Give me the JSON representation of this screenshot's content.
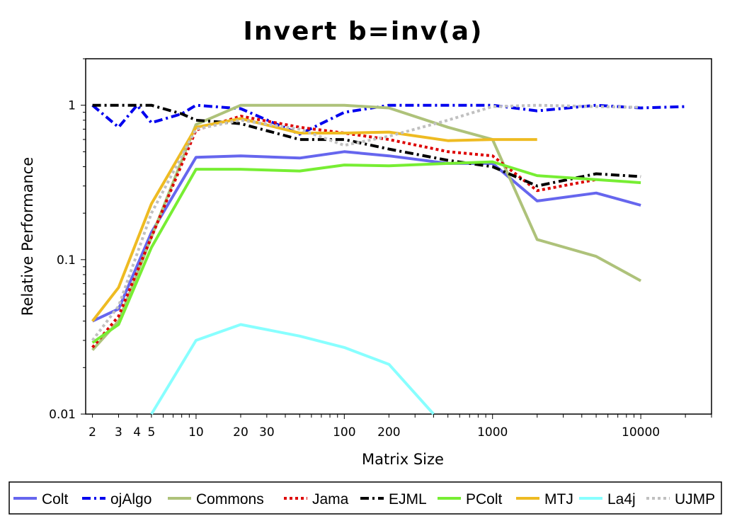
{
  "chart_data": {
    "type": "line",
    "title": "Invert b=inv(a)",
    "xlabel": "Matrix Size",
    "ylabel": "Relative Performance",
    "xscale": "log",
    "yscale": "log",
    "xlim": [
      1.8,
      30000
    ],
    "ylim": [
      0.01,
      2.0
    ],
    "x_ticks": [
      {
        "value": 2,
        "label": "2"
      },
      {
        "value": 3,
        "label": "3"
      },
      {
        "value": 4,
        "label": "4"
      },
      {
        "value": 5,
        "label": "5"
      },
      {
        "value": 10,
        "label": "10"
      },
      {
        "value": 20,
        "label": "20"
      },
      {
        "value": 30,
        "label": "30"
      },
      {
        "value": 100,
        "label": "100"
      },
      {
        "value": 200,
        "label": "200"
      },
      {
        "value": 1000,
        "label": "1000"
      },
      {
        "value": 10000,
        "label": "10000"
      }
    ],
    "y_ticks": [
      {
        "value": 0.01,
        "label": "0.01"
      },
      {
        "value": 0.1,
        "label": "0.1"
      },
      {
        "value": 1,
        "label": "1"
      }
    ],
    "grid": false,
    "legend_position": "bottom",
    "series": [
      {
        "name": "Colt",
        "color": "#6666ee",
        "dash": "solid",
        "x": [
          2,
          3,
          5,
          10,
          20,
          50,
          100,
          200,
          500,
          1000,
          2000,
          5000,
          10000
        ],
        "y": [
          0.04,
          0.048,
          0.15,
          0.46,
          0.47,
          0.455,
          0.5,
          0.47,
          0.42,
          0.42,
          0.24,
          0.27,
          0.225
        ]
      },
      {
        "name": "ojAlgo",
        "color": "#0000ee",
        "dash": "dashdot",
        "x": [
          2,
          3,
          4,
          5,
          8,
          10,
          20,
          50,
          100,
          200,
          500,
          1000,
          2000,
          5000,
          10000,
          20000
        ],
        "y": [
          1.0,
          0.72,
          1.0,
          0.77,
          0.88,
          1.0,
          0.95,
          0.65,
          0.9,
          1.0,
          1.0,
          1.0,
          0.92,
          1.0,
          0.96,
          0.98
        ]
      },
      {
        "name": "Commons",
        "color": "#aec27a",
        "dash": "solid",
        "x": [
          2,
          3,
          5,
          10,
          20,
          50,
          100,
          200,
          500,
          1000,
          2000,
          5000,
          10000
        ],
        "y": [
          0.026,
          0.04,
          0.14,
          0.75,
          1.0,
          1.0,
          1.0,
          0.96,
          0.72,
          0.6,
          0.135,
          0.105,
          0.073
        ]
      },
      {
        "name": "Jama",
        "color": "#dd0000",
        "dash": "dotted",
        "x": [
          2,
          3,
          5,
          10,
          20,
          50,
          100,
          200,
          500,
          1000,
          2000,
          5000
        ],
        "y": [
          0.027,
          0.043,
          0.14,
          0.69,
          0.85,
          0.72,
          0.66,
          0.6,
          0.5,
          0.47,
          0.28,
          0.33
        ]
      },
      {
        "name": "EJML",
        "color": "#000000",
        "dash": "dashdot",
        "x": [
          2,
          3,
          5,
          8,
          10,
          20,
          50,
          100,
          200,
          500,
          1000,
          2000,
          5000,
          10000
        ],
        "y": [
          1.0,
          1.0,
          1.0,
          0.88,
          0.8,
          0.76,
          0.6,
          0.6,
          0.52,
          0.44,
          0.4,
          0.3,
          0.36,
          0.345
        ]
      },
      {
        "name": "PColt",
        "color": "#77ee33",
        "dash": "solid",
        "x": [
          2,
          3,
          5,
          10,
          20,
          50,
          100,
          200,
          500,
          1000,
          2000,
          5000,
          10000
        ],
        "y": [
          0.029,
          0.038,
          0.12,
          0.385,
          0.385,
          0.375,
          0.41,
          0.405,
          0.42,
          0.43,
          0.35,
          0.33,
          0.315
        ]
      },
      {
        "name": "MTJ",
        "color": "#eebb22",
        "dash": "solid",
        "x": [
          2,
          3,
          5,
          10,
          20,
          50,
          100,
          200,
          500,
          1000,
          2000
        ],
        "y": [
          0.04,
          0.066,
          0.23,
          0.72,
          0.82,
          0.66,
          0.66,
          0.67,
          0.59,
          0.6,
          0.6
        ]
      },
      {
        "name": "La4j",
        "color": "#88ffff",
        "dash": "solid",
        "x": [
          5,
          10,
          20,
          50,
          100,
          200,
          400
        ],
        "y": [
          0.01,
          0.03,
          0.038,
          0.032,
          0.027,
          0.021,
          0.01
        ]
      },
      {
        "name": "UJMP",
        "color": "#c0c0c0",
        "dash": "dotted",
        "x": [
          2,
          3,
          5,
          10,
          20,
          50,
          100,
          200,
          500,
          1000,
          2000,
          5000,
          10000
        ],
        "y": [
          0.03,
          0.05,
          0.2,
          0.7,
          0.8,
          0.7,
          0.55,
          0.63,
          0.8,
          0.98,
          1.0,
          0.98,
          0.97
        ]
      }
    ]
  }
}
